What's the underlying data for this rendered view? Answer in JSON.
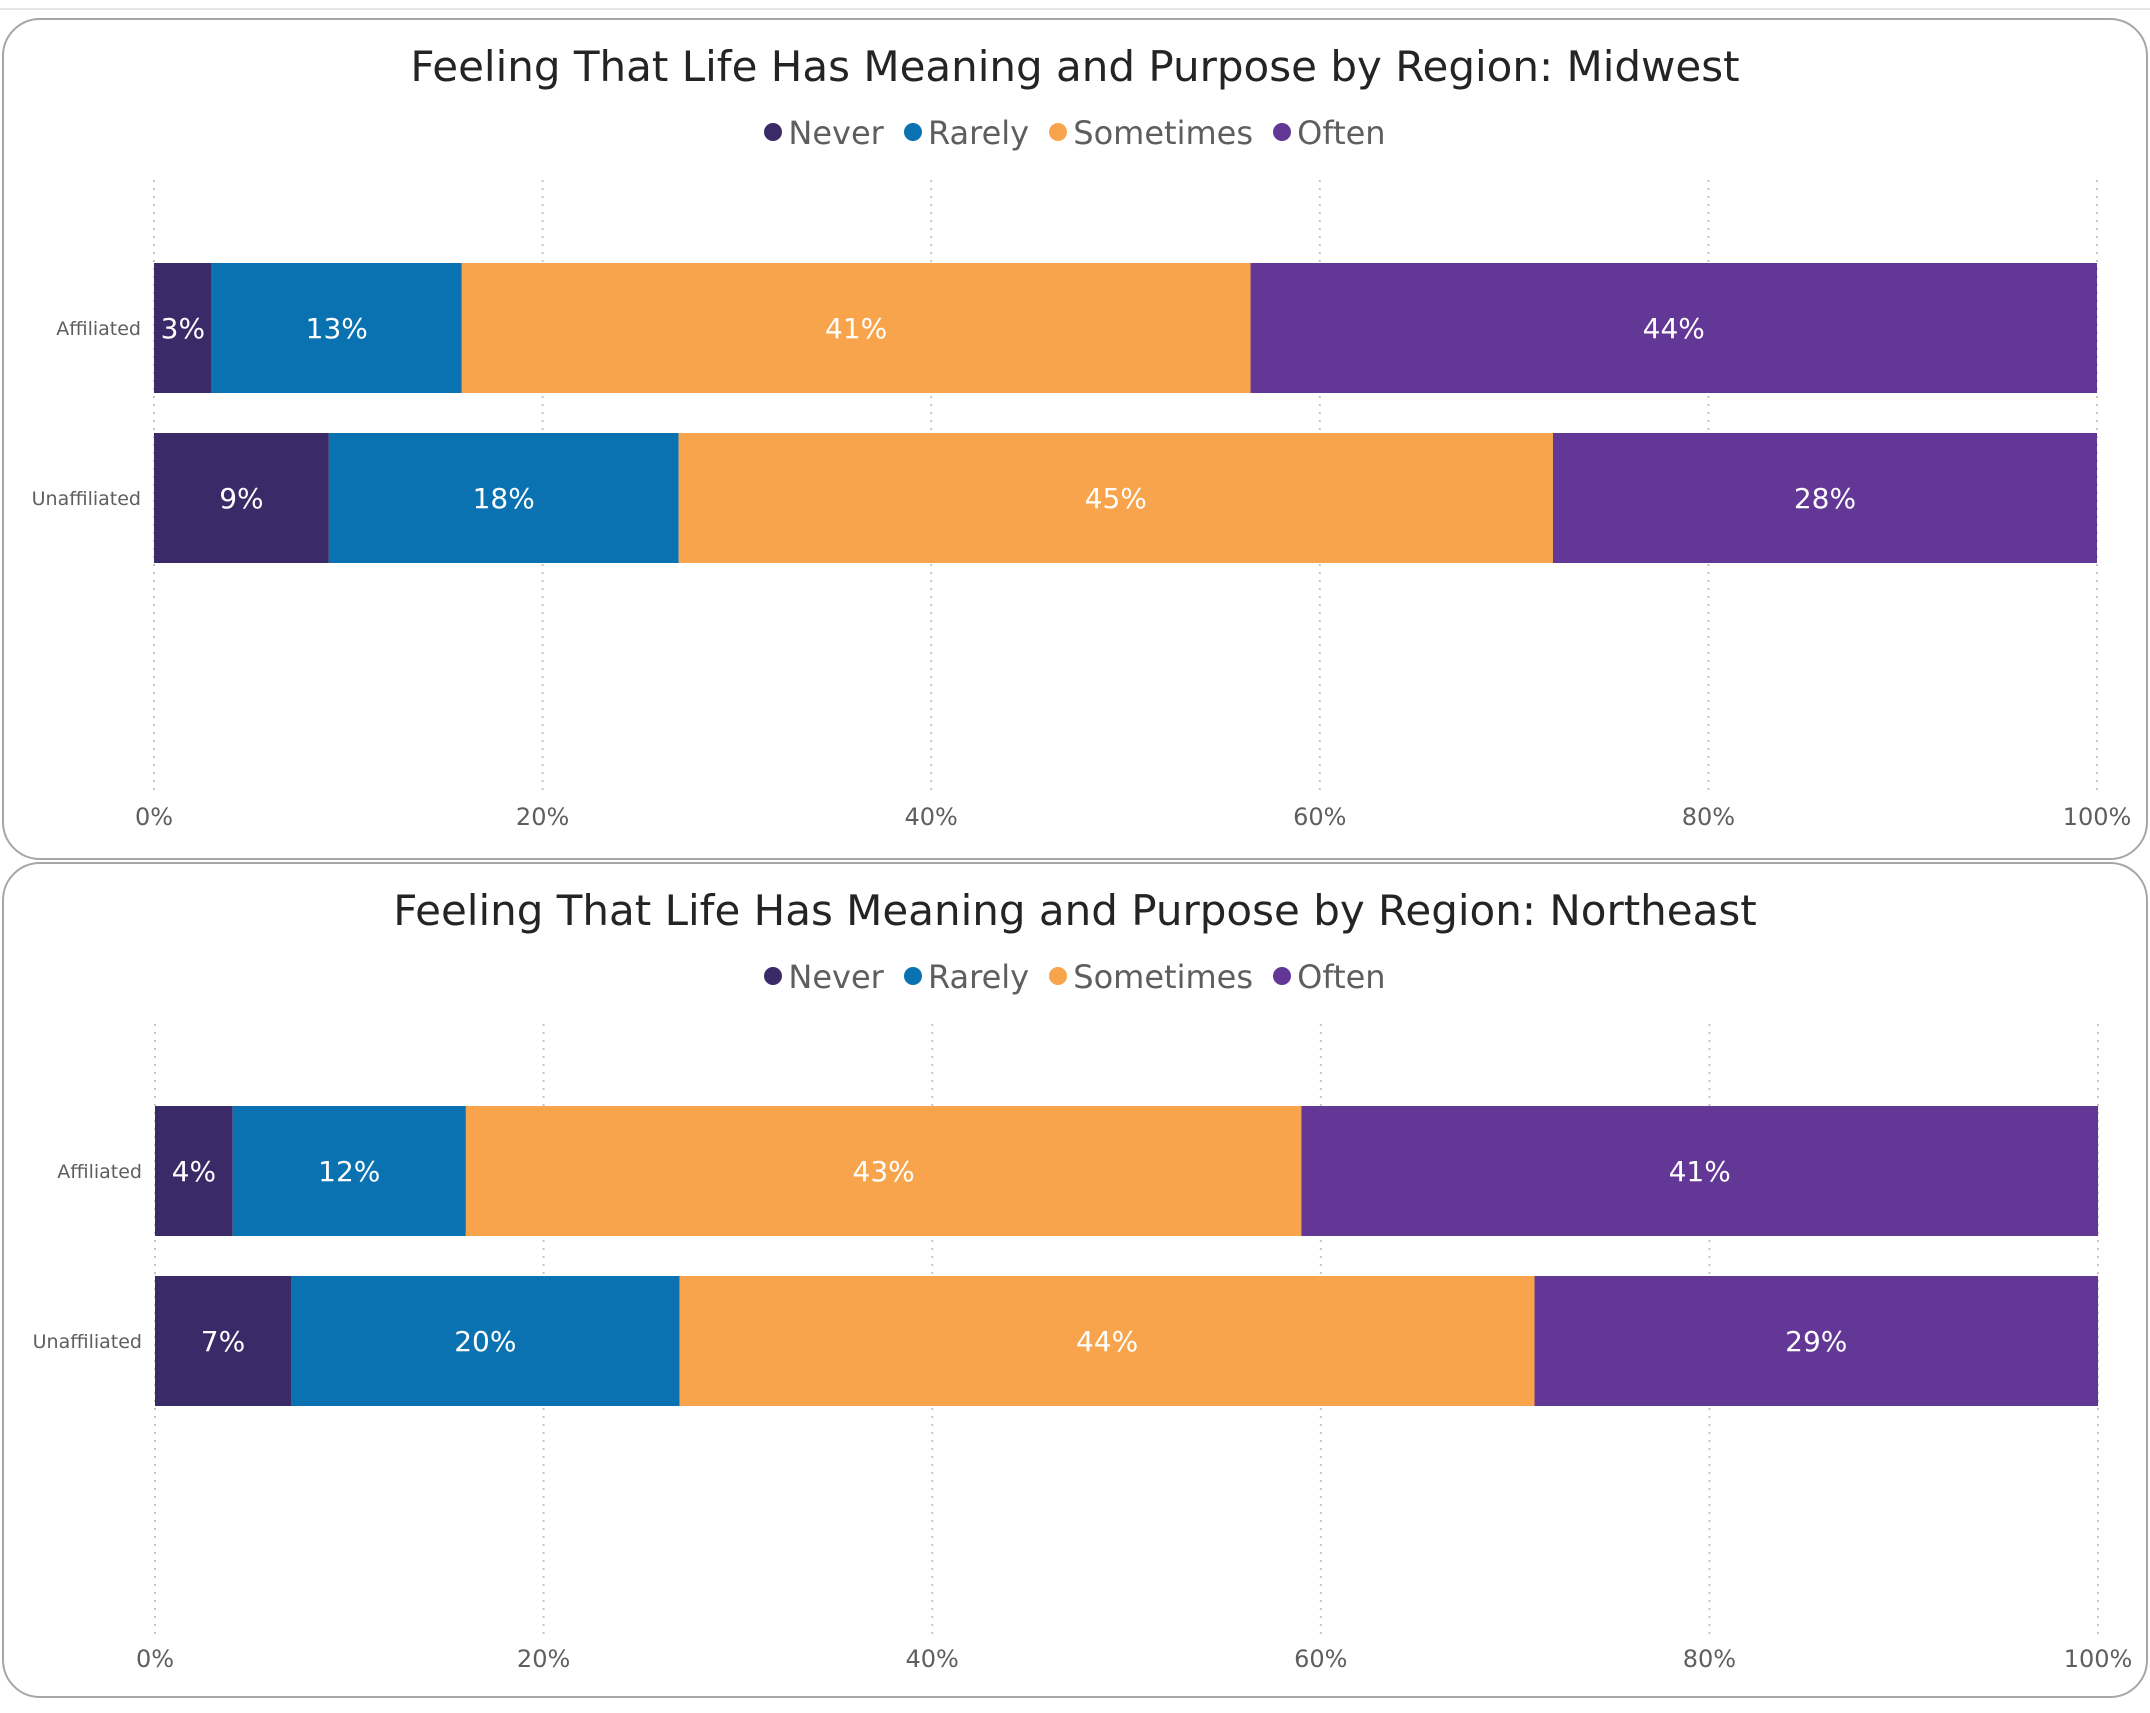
{
  "colors": {
    "Never": "#3b2a68",
    "Rarely": "#0a72b1",
    "Sometimes": "#f8a44c",
    "Often": "#633795"
  },
  "chart_data": [
    {
      "type": "bar",
      "orientation": "horizontal",
      "stacking": "percent",
      "title": "Feeling That Life Has Meaning and Purpose by Region: Midwest",
      "categories": [
        "Affiliated",
        "Unaffiliated"
      ],
      "series": [
        {
          "name": "Never",
          "values": [
            3,
            9
          ],
          "labels": [
            "3%",
            "9%"
          ]
        },
        {
          "name": "Rarely",
          "values": [
            13,
            18
          ],
          "labels": [
            "13%",
            "18%"
          ]
        },
        {
          "name": "Sometimes",
          "values": [
            41,
            45
          ],
          "labels": [
            "41%",
            "45%"
          ]
        },
        {
          "name": "Often",
          "values": [
            44,
            28
          ],
          "labels": [
            "44%",
            "28%"
          ]
        }
      ],
      "xlim": [
        0,
        100
      ],
      "x_ticks": [
        "0%",
        "20%",
        "40%",
        "60%",
        "80%",
        "100%"
      ],
      "legend": "top-center",
      "grid": "vertical-dotted"
    },
    {
      "type": "bar",
      "orientation": "horizontal",
      "stacking": "percent",
      "title": "Feeling That Life Has Meaning and Purpose by Region: Northeast",
      "categories": [
        "Affiliated",
        "Unaffiliated"
      ],
      "series": [
        {
          "name": "Never",
          "values": [
            4,
            7
          ],
          "labels": [
            "4%",
            "7%"
          ]
        },
        {
          "name": "Rarely",
          "values": [
            12,
            20
          ],
          "labels": [
            "12%",
            "20%"
          ]
        },
        {
          "name": "Sometimes",
          "values": [
            43,
            44
          ],
          "labels": [
            "43%",
            "44%"
          ]
        },
        {
          "name": "Often",
          "values": [
            41,
            29
          ],
          "labels": [
            "41%",
            "29%"
          ]
        }
      ],
      "xlim": [
        0,
        100
      ],
      "x_ticks": [
        "0%",
        "20%",
        "40%",
        "60%",
        "80%",
        "100%"
      ],
      "legend": "top-center",
      "grid": "vertical-dotted"
    }
  ]
}
